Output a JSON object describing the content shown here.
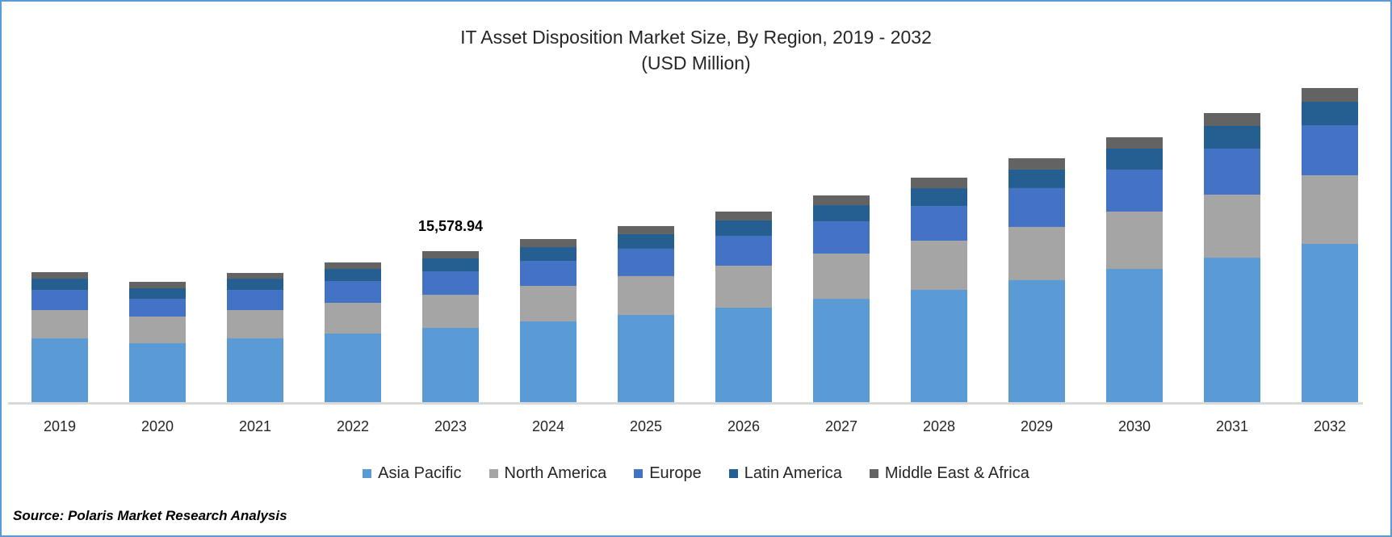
{
  "chart_data": {
    "type": "bar",
    "stacked": true,
    "title": "IT Asset Disposition Market Size, By Region, 2019 - 2032",
    "subtitle": "(USD Million)",
    "xlabel": "",
    "ylabel": "",
    "grid": false,
    "legend_position": "bottom",
    "categories": [
      "2019",
      "2020",
      "2021",
      "2022",
      "2023",
      "2024",
      "2025",
      "2026",
      "2027",
      "2028",
      "2029",
      "2030",
      "2031",
      "2032"
    ],
    "series": [
      {
        "name": "Asia Pacific",
        "color": "#5b9bd5",
        "values": [
          6580,
          6080,
          6580,
          7080,
          7665,
          8330,
          9000,
          9750,
          10660,
          11580,
          12580,
          13745,
          14910,
          16330
        ]
      },
      {
        "name": "North America",
        "color": "#a5a5a5",
        "values": [
          2915,
          2750,
          2915,
          3165,
          3415,
          3665,
          4000,
          4330,
          4665,
          5080,
          5500,
          5915,
          6500,
          7080
        ]
      },
      {
        "name": "Europe",
        "color": "#4472c4",
        "values": [
          2083,
          1833,
          2083,
          2250,
          2415,
          2583,
          2833,
          3083,
          3333,
          3582,
          4000,
          4333,
          4750,
          5165
        ]
      },
      {
        "name": "Latin America",
        "color": "#255e91",
        "values": [
          1166,
          1083,
          1166,
          1250,
          1333,
          1416,
          1500,
          1583,
          1666,
          1833,
          1916,
          2166,
          2333,
          2416
        ]
      },
      {
        "name": "Middle East & Africa",
        "color": "#636363",
        "values": [
          666,
          666,
          583,
          666,
          750,
          833,
          833,
          916,
          1000,
          1083,
          1166,
          1166,
          1333,
          1416
        ]
      }
    ],
    "annotations": [
      {
        "category": "2023",
        "text": "15,578.94"
      }
    ]
  },
  "source": "Source: Polaris Market Research Analysis",
  "colors": {
    "frame": "#5b9bd5",
    "axis": "#d9d9d9"
  }
}
